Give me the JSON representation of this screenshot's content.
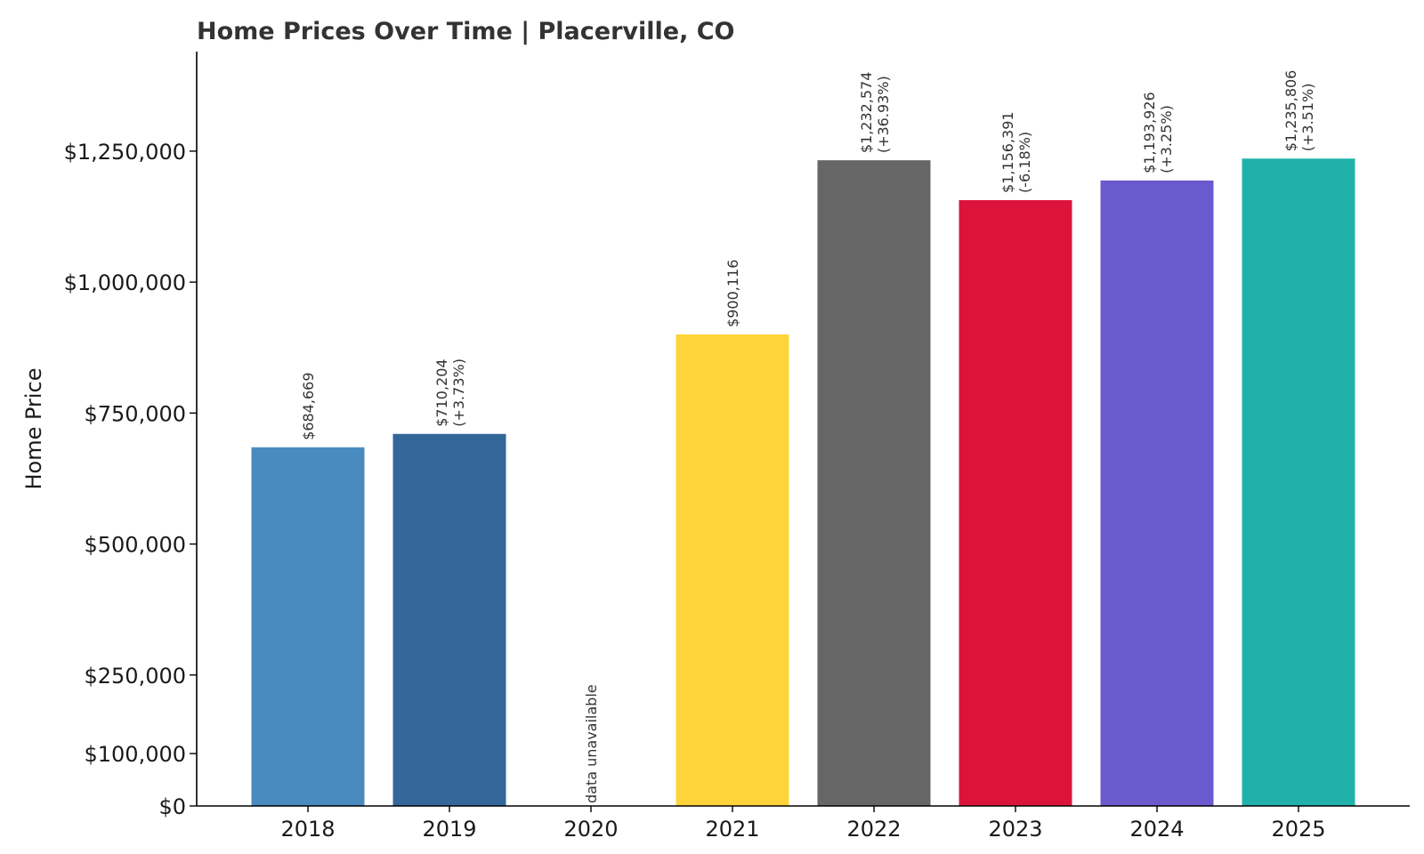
{
  "chart_data": {
    "type": "bar",
    "title": "Home Prices Over Time | Placerville, CO",
    "xlabel": "",
    "ylabel": "Home Price",
    "ylim": [
      0,
      1440000
    ],
    "y_ticks": [
      {
        "value": 0,
        "label": "$0"
      },
      {
        "value": 100000,
        "label": "$100,000"
      },
      {
        "value": 250000,
        "label": "$250,000"
      },
      {
        "value": 500000,
        "label": "$500,000"
      },
      {
        "value": 750000,
        "label": "$750,000"
      },
      {
        "value": 1000000,
        "label": "$1,000,000"
      },
      {
        "value": 1250000,
        "label": "$1,250,000"
      }
    ],
    "categories": [
      "2018",
      "2019",
      "2020",
      "2021",
      "2022",
      "2023",
      "2024",
      "2025"
    ],
    "values": [
      684669,
      710204,
      null,
      900116,
      1232574,
      1156391,
      1193926,
      1235806
    ],
    "value_labels": [
      "$684,669",
      "$710,204",
      "",
      "$900,116",
      "$1,232,574",
      "$1,156,391",
      "$1,193,926",
      "$1,235,806"
    ],
    "change_labels": [
      "",
      "(+3.73%)",
      "",
      "",
      "(+36.93%)",
      "(-6.18%)",
      "(+3.25%)",
      "(+3.51%)"
    ],
    "missing_label": "data unavailable",
    "colors": [
      "#4a8bbf",
      "#336699",
      "#cccccc",
      "#ffd43b",
      "#666666",
      "#dc143c",
      "#6a5acd",
      "#20b2aa"
    ],
    "grid": false,
    "legend": "none"
  }
}
